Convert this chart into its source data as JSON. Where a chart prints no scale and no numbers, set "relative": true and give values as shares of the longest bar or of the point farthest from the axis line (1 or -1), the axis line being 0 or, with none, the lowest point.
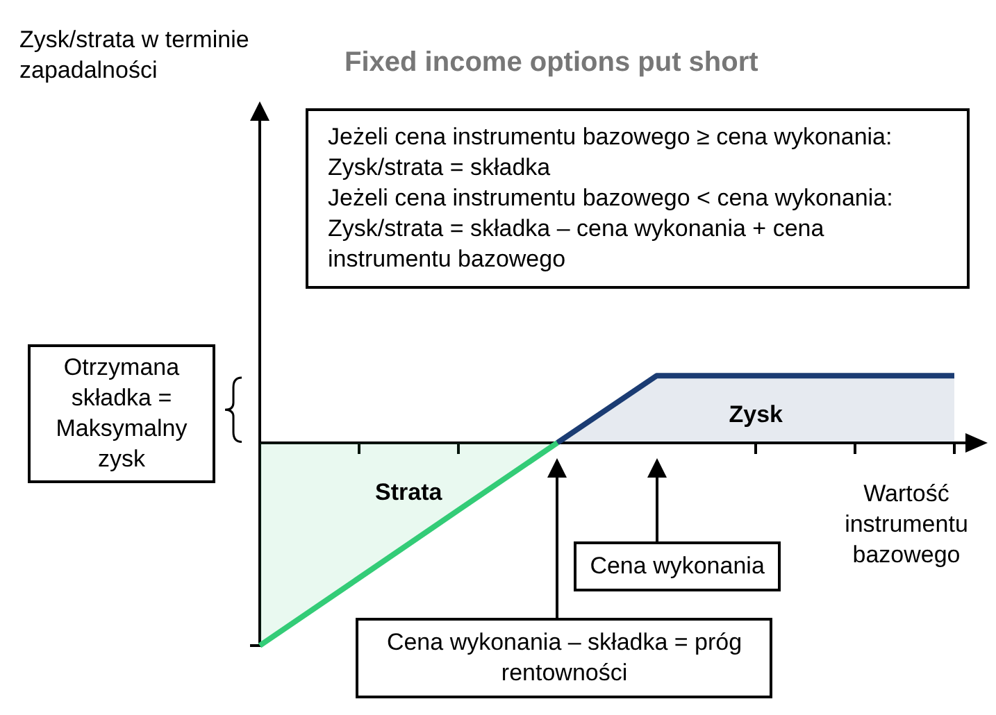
{
  "chart_data": {
    "type": "line",
    "title": "Fixed income options put short",
    "xlabel": "Wartość instrumentu bazowego",
    "relative": true,
    "legend": false,
    "marker": "none",
    "line_style": "solid",
    "categories": [
      null,
      null,
      null,
      null,
      null,
      null,
      null,
      null
    ],
    "series": [
      {
        "name": "Strata",
        "color": "#33cc77",
        "values": [
          -1,
          -0.667,
          -0.333,
          0,
          null,
          null,
          null,
          null
        ]
      },
      {
        "name": "Zysk",
        "color": "#1b3c73",
        "values": [
          null,
          null,
          null,
          0,
          0.33,
          0.33,
          0.33,
          0.33
        ]
      }
    ],
    "annotations": [
      "Jeżeli cena instrumentu bazowego ≥ cena wykonania: Zysk/strata = składka\nJeżeli cena instrumentu bazowego < cena wykonania:\nZysk/strata = składka – cena wykonania + cena instrumentu bazowego",
      "Otrzymana składka = Maksymalny zysk",
      "Cena wykonania",
      "Cena wykonania – składka = próg rentowności",
      "Zysk/strata w terminie zapadalności"
    ]
  }
}
